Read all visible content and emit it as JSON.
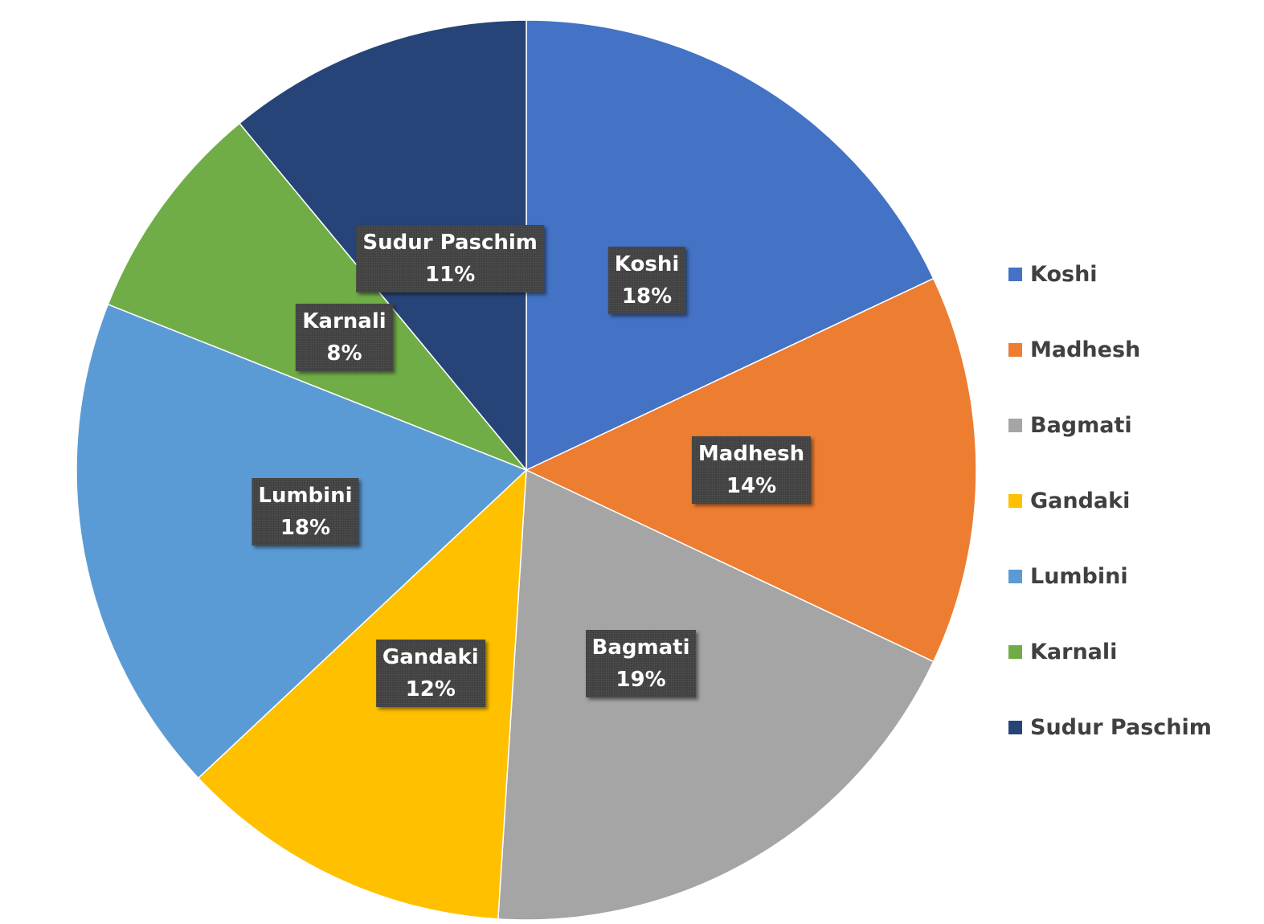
{
  "chart_data": {
    "type": "pie",
    "categories": [
      "Koshi",
      "Madhesh",
      "Bagmati",
      "Gandaki",
      "Lumbini",
      "Karnali",
      "Sudur Paschim"
    ],
    "values": [
      18,
      14,
      19,
      12,
      18,
      8,
      11
    ],
    "labels": [
      "18%",
      "14%",
      "19%",
      "12%",
      "18%",
      "8%",
      "11%"
    ],
    "colors": [
      "#4472C4",
      "#ED7D31",
      "#A5A5A5",
      "#FFC000",
      "#5B9BD5",
      "#70AD47",
      "#264478"
    ],
    "start_angle": "top, clockwise",
    "legend_position": "right"
  }
}
